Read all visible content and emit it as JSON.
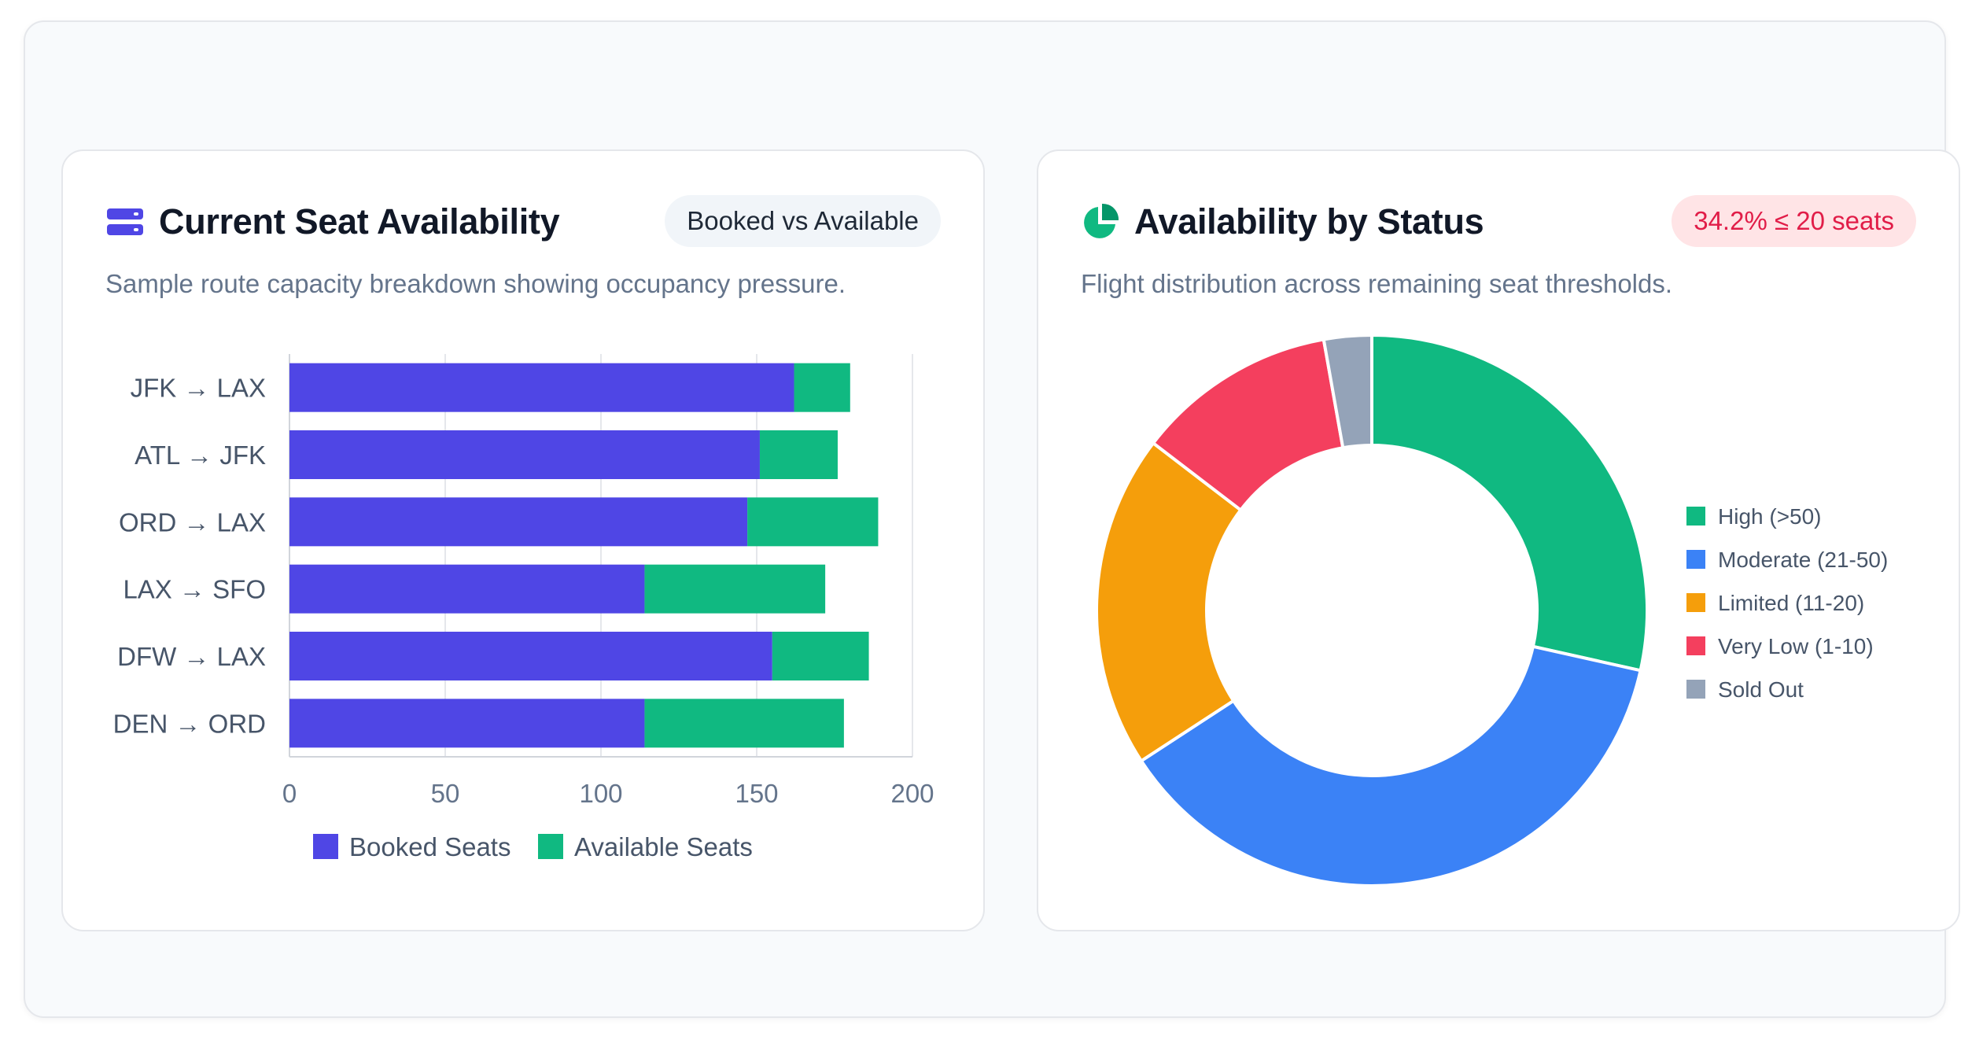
{
  "panels": {
    "seat_availability": {
      "title": "Current Seat Availability",
      "icon": "server-stack-icon",
      "badge": "Booked vs Available",
      "subtitle": "Sample route capacity breakdown showing occupancy pressure."
    },
    "status": {
      "title": "Availability by Status",
      "icon": "pie-chart-icon",
      "badge": "34.2% ≤ 20 seats",
      "subtitle": "Flight distribution across remaining seat thresholds."
    }
  },
  "colors": {
    "booked": "#4f46e5",
    "available": "#10b981",
    "high": "#10b981",
    "moderate": "#3b82f6",
    "limited": "#f59e0b",
    "very_low": "#f43f5e",
    "sold_out": "#94a3b8",
    "alert": "#e11d48"
  },
  "chart_data": [
    {
      "type": "bar",
      "orientation": "horizontal",
      "stacked": true,
      "categories": [
        "JFK → LAX",
        "ATL → JFK",
        "ORD → LAX",
        "LAX → SFO",
        "DFW → LAX",
        "DEN → ORD"
      ],
      "series": [
        {
          "name": "Booked Seats",
          "values": [
            162,
            151,
            147,
            114,
            155,
            114
          ]
        },
        {
          "name": "Available Seats",
          "values": [
            18,
            25,
            42,
            58,
            31,
            64
          ]
        }
      ],
      "xlim": [
        0,
        200
      ],
      "xticks": [
        0,
        50,
        100,
        150,
        200
      ],
      "grid": true,
      "legend": "bottom"
    },
    {
      "type": "pie",
      "variant": "doughnut",
      "labels": [
        "High (>50)",
        "Moderate (21-50)",
        "Limited (11-20)",
        "Very Low (1-10)",
        "Sold Out"
      ],
      "values": [
        28.5,
        37.3,
        19.6,
        11.8,
        2.8
      ],
      "legend": "right"
    }
  ]
}
